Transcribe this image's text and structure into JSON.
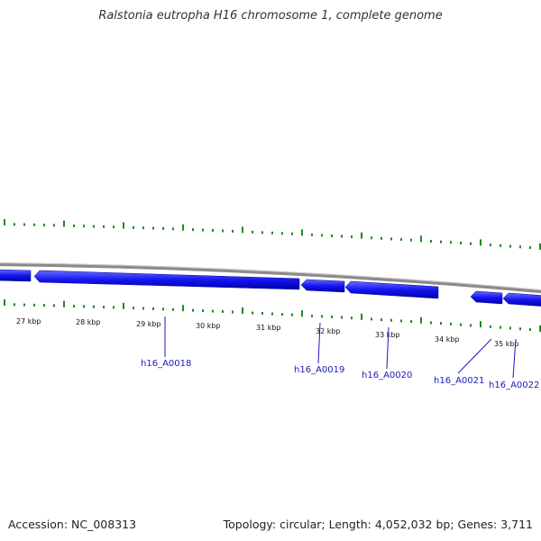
{
  "title": "Ralstonia eutropha H16 chromosome 1, complete genome",
  "footer": {
    "accession": "Accession: NC_008313",
    "summary": "Topology: circular; Length: 4,052,032 bp; Genes: 3,711"
  },
  "colors": {
    "gene_fill": "#1414f0",
    "gene_dark": "#0000a0",
    "backbone": "#8a8a8a",
    "gc_ticks": "#228822",
    "label": "#1a1ab4"
  },
  "scale_labels": [
    "27 kbp",
    "28 kbp",
    "29 kbp",
    "30 kbp",
    "31 kbp",
    "32 kbp",
    "33 kbp",
    "34 kbp",
    "35 kbp"
  ],
  "gene_labels": [
    "h16_A0018",
    "h16_A0019",
    "h16_A0020",
    "h16_A0021",
    "h16_A0022"
  ]
}
